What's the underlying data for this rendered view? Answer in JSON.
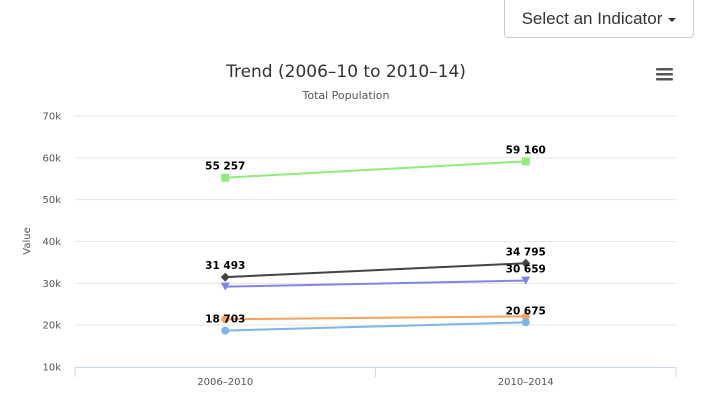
{
  "indicator_button": {
    "label": "Select an Indicator",
    "icon": "caret-down-icon"
  },
  "menu_icon": "hamburger-menu-icon",
  "chart_data": {
    "type": "line",
    "title": "Trend (2006–10 to 2010–14)",
    "subtitle": "Total Population",
    "ylabel": "Value",
    "xlabel": "",
    "categories": [
      "2006–2010",
      "2010–2014"
    ],
    "ylim": [
      10000,
      70000
    ],
    "yticks": [
      {
        "value": 10000,
        "label": "10k"
      },
      {
        "value": 20000,
        "label": "20k"
      },
      {
        "value": 30000,
        "label": "30k"
      },
      {
        "value": 40000,
        "label": "40k"
      },
      {
        "value": 50000,
        "label": "50k"
      },
      {
        "value": 60000,
        "label": "60k"
      },
      {
        "value": 70000,
        "label": "70k"
      }
    ],
    "grid": true,
    "series": [
      {
        "values": [
          55257,
          59160
        ],
        "color": "#90ed7d",
        "marker": "square",
        "data_labels": [
          "55 257",
          "59 160"
        ]
      },
      {
        "values": [
          31493,
          34795
        ],
        "color": "#434348",
        "marker": "diamond",
        "data_labels": [
          "31 493",
          "34 795"
        ]
      },
      {
        "values": [
          29200,
          30659
        ],
        "color": "#8085e9",
        "marker": "triangle-down",
        "data_labels": [
          "",
          "30 659"
        ]
      },
      {
        "values": [
          21400,
          22100
        ],
        "color": "#f7a35c",
        "marker": "circle",
        "data_labels": [
          "",
          ""
        ]
      },
      {
        "values": [
          18703,
          20675
        ],
        "color": "#7cb5ec",
        "marker": "circle",
        "data_labels": [
          "18 703",
          "20 675"
        ]
      }
    ]
  }
}
